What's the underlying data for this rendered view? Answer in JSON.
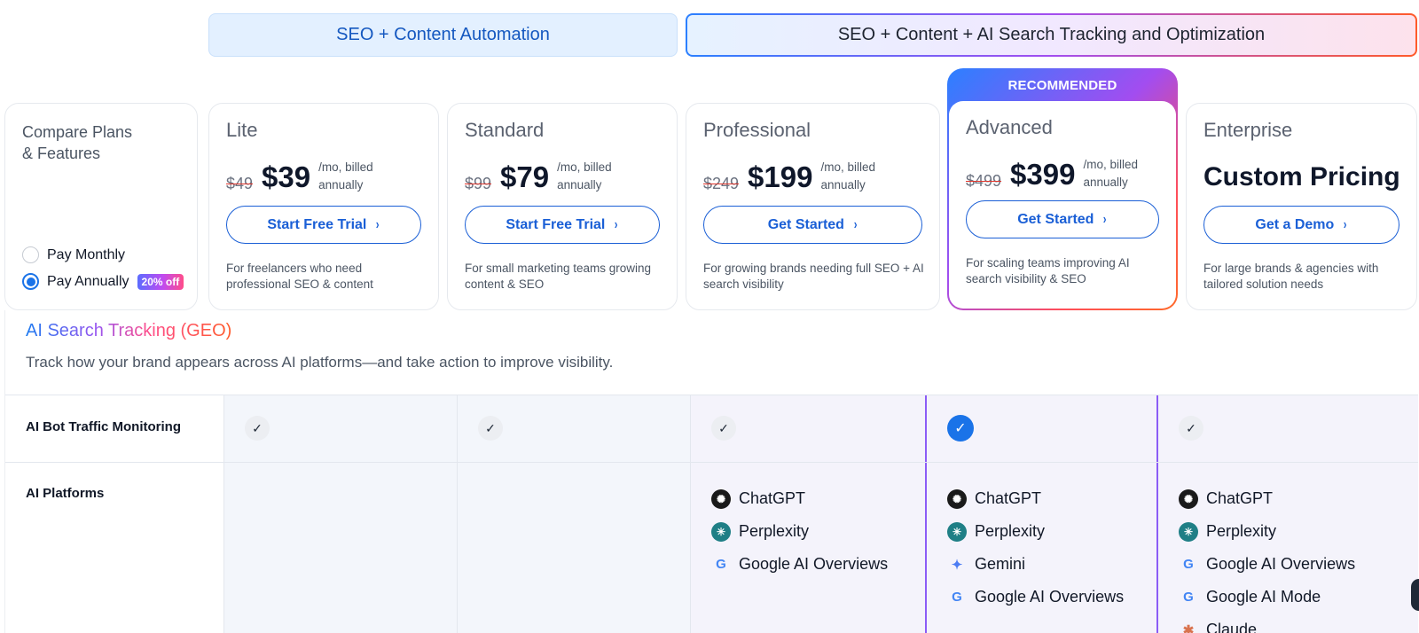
{
  "groups": {
    "automation": "SEO + Content Automation",
    "ai_tracking": "SEO + Content + AI Search Tracking and Optimization"
  },
  "compare": {
    "title": "Compare Plans & Features",
    "monthly_label": "Pay Monthly",
    "annual_label": "Pay Annually",
    "discount_badge": "20% off",
    "selected_billing": "annual"
  },
  "plans": {
    "lite": {
      "name": "Lite",
      "old_price": "$49",
      "price": "$39",
      "period": "/mo, billed annually",
      "cta": "Start Free Trial",
      "desc": "For freelancers who need professional SEO & content"
    },
    "standard": {
      "name": "Standard",
      "old_price": "$99",
      "price": "$79",
      "period": "/mo, billed annually",
      "cta": "Start Free Trial",
      "desc": "For small marketing teams growing content & SEO"
    },
    "professional": {
      "name": "Professional",
      "old_price": "$249",
      "price": "$199",
      "period": "/mo, billed annually",
      "cta": "Get Started",
      "desc": "For growing brands needing full SEO + AI search visibility"
    },
    "advanced": {
      "ribbon": "RECOMMENDED",
      "name": "Advanced",
      "old_price": "$499",
      "price": "$399",
      "period": "/mo, billed annually",
      "cta": "Get Started",
      "desc": "For scaling teams improving AI search visibility & SEO"
    },
    "enterprise": {
      "name": "Enterprise",
      "price_text": "Custom Pricing",
      "cta": "Get a Demo",
      "desc": "For large brands & agencies with tailored solution needs"
    }
  },
  "section": {
    "title": "AI Search Tracking (GEO)",
    "subtitle": "Track how your brand appears across AI platforms—and take action to improve visibility."
  },
  "features": {
    "bot_traffic": {
      "label": "AI Bot Traffic Monitoring",
      "included": [
        true,
        true,
        true,
        true,
        true
      ]
    },
    "platforms": {
      "label": "AI Platforms",
      "professional": [
        "ChatGPT",
        "Perplexity",
        "Google AI Overviews"
      ],
      "advanced": [
        "ChatGPT",
        "Perplexity",
        "Gemini",
        "Google AI Overviews"
      ],
      "enterprise": [
        "ChatGPT",
        "Perplexity",
        "Google AI Overviews",
        "Google AI Mode",
        "Claude"
      ]
    }
  },
  "icons": {
    "check": "✓",
    "chevron": "›",
    "chatgpt": "✺",
    "perplexity": "✳",
    "google": "G",
    "gemini": "✦",
    "claude": "✱"
  },
  "colors": {
    "accent_blue": "#1a5fd6",
    "recommended_gradient_start": "#2b80ff",
    "recommended_gradient_end": "#ff6a2a",
    "advanced_column_border": "#8b5cf6"
  }
}
